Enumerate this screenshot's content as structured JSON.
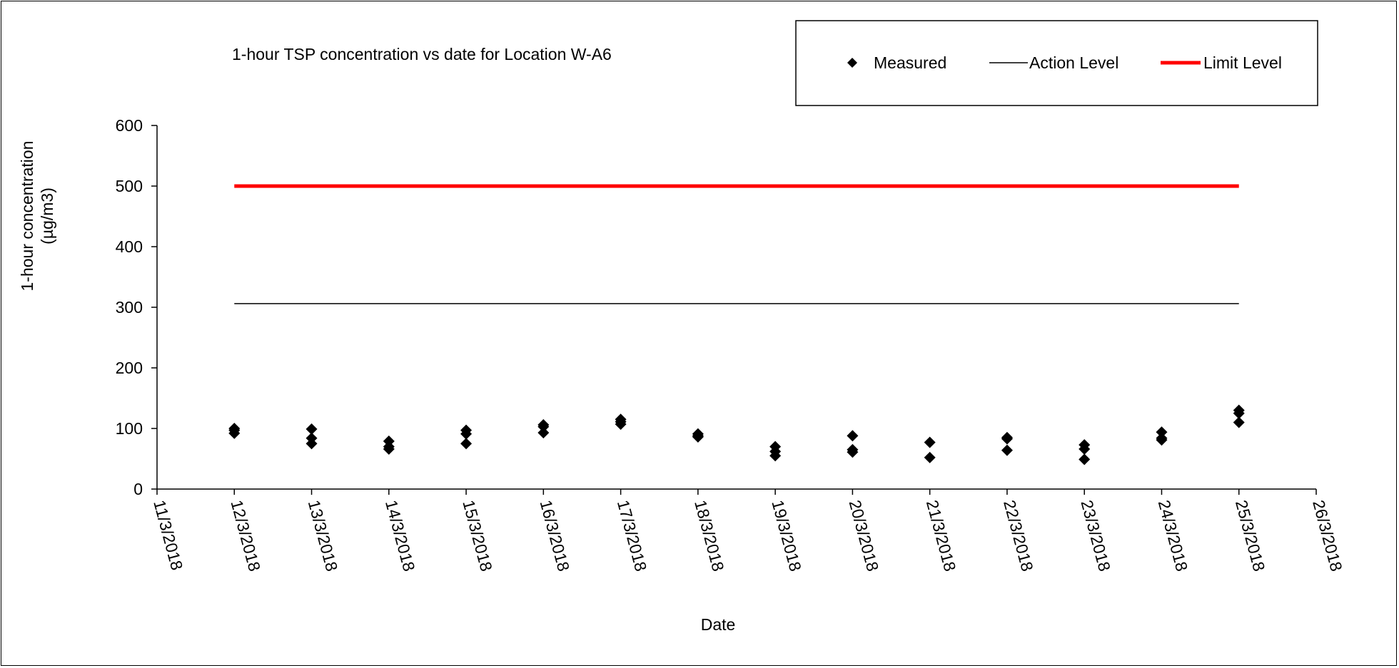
{
  "chart_data": {
    "type": "scatter",
    "title": "1-hour TSP concentration vs date for Location W-A6",
    "xlabel": "Date",
    "ylabel": [
      "1-hour concentration",
      "(µg/m3)"
    ],
    "ylim": [
      0,
      600
    ],
    "yticks": [
      0,
      100,
      200,
      300,
      400,
      500,
      600
    ],
    "xlim": [
      "11/3/2018",
      "26/3/2018"
    ],
    "xticks": [
      "11/3/2018",
      "12/3/2018",
      "13/3/2018",
      "14/3/2018",
      "15/3/2018",
      "16/3/2018",
      "17/3/2018",
      "18/3/2018",
      "19/3/2018",
      "20/3/2018",
      "21/3/2018",
      "22/3/2018",
      "23/3/2018",
      "24/3/2018",
      "25/3/2018",
      "26/3/2018"
    ],
    "grid": false,
    "legend_position": "top-right",
    "series": [
      {
        "name": "Measured",
        "marker": "diamond",
        "color": "#000000",
        "points": [
          {
            "x": "12/3/2018",
            "y": 100
          },
          {
            "x": "12/3/2018",
            "y": 97
          },
          {
            "x": "12/3/2018",
            "y": 92
          },
          {
            "x": "13/3/2018",
            "y": 99
          },
          {
            "x": "13/3/2018",
            "y": 84
          },
          {
            "x": "13/3/2018",
            "y": 75
          },
          {
            "x": "14/3/2018",
            "y": 79
          },
          {
            "x": "14/3/2018",
            "y": 70
          },
          {
            "x": "14/3/2018",
            "y": 66
          },
          {
            "x": "15/3/2018",
            "y": 97
          },
          {
            "x": "15/3/2018",
            "y": 91
          },
          {
            "x": "15/3/2018",
            "y": 75
          },
          {
            "x": "16/3/2018",
            "y": 106
          },
          {
            "x": "16/3/2018",
            "y": 103
          },
          {
            "x": "16/3/2018",
            "y": 93
          },
          {
            "x": "17/3/2018",
            "y": 115
          },
          {
            "x": "17/3/2018",
            "y": 111
          },
          {
            "x": "17/3/2018",
            "y": 107
          },
          {
            "x": "18/3/2018",
            "y": 91
          },
          {
            "x": "18/3/2018",
            "y": 88
          },
          {
            "x": "18/3/2018",
            "y": 86
          },
          {
            "x": "19/3/2018",
            "y": 70
          },
          {
            "x": "19/3/2018",
            "y": 62
          },
          {
            "x": "19/3/2018",
            "y": 55
          },
          {
            "x": "20/3/2018",
            "y": 88
          },
          {
            "x": "20/3/2018",
            "y": 65
          },
          {
            "x": "20/3/2018",
            "y": 61
          },
          {
            "x": "21/3/2018",
            "y": 77
          },
          {
            "x": "21/3/2018",
            "y": 52
          },
          {
            "x": "22/3/2018",
            "y": 85
          },
          {
            "x": "22/3/2018",
            "y": 83
          },
          {
            "x": "22/3/2018",
            "y": 64
          },
          {
            "x": "23/3/2018",
            "y": 73
          },
          {
            "x": "23/3/2018",
            "y": 66
          },
          {
            "x": "23/3/2018",
            "y": 49
          },
          {
            "x": "24/3/2018",
            "y": 94
          },
          {
            "x": "24/3/2018",
            "y": 84
          },
          {
            "x": "24/3/2018",
            "y": 81
          },
          {
            "x": "25/3/2018",
            "y": 130
          },
          {
            "x": "25/3/2018",
            "y": 125
          },
          {
            "x": "25/3/2018",
            "y": 110
          }
        ]
      },
      {
        "name": "Action Level",
        "type": "line",
        "color": "#000000",
        "x": [
          "12/3/2018",
          "25/3/2018"
        ],
        "y": [
          306,
          306
        ]
      },
      {
        "name": "Limit Level",
        "type": "line",
        "color": "#ff0000",
        "x": [
          "12/3/2018",
          "25/3/2018"
        ],
        "y": [
          500,
          500
        ]
      }
    ]
  }
}
